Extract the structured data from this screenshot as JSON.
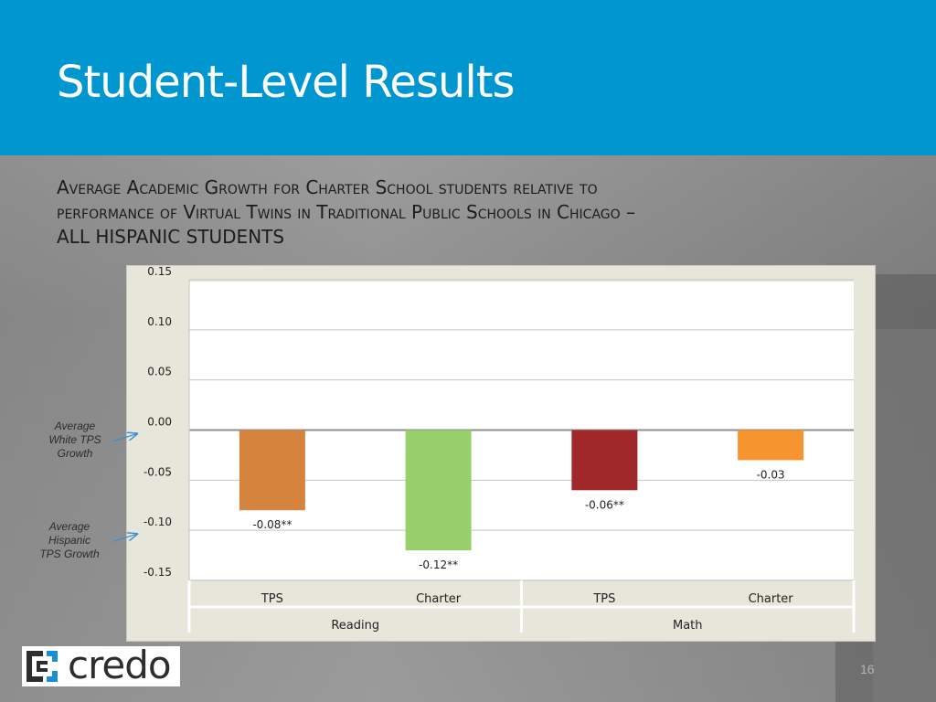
{
  "slide": {
    "title": "Student-Level Results",
    "subtitle_lines": [
      "Average Academic Growth for Charter School students relative to",
      "performance of Virtual Twins in Traditional Public Schools in Chicago –",
      "ALL HISPANIC STUDENTS"
    ],
    "page_number": "16",
    "logo_text": "credo",
    "annotations": {
      "white_tps_lines": [
        "Average",
        "White TPS",
        "Growth"
      ],
      "white_tps_value": 0.0,
      "hispanic_tps_lines": [
        "Average",
        "Hispanic",
        "TPS Growth"
      ],
      "hispanic_tps_value": -0.1
    }
  },
  "colors": {
    "header": "#0097d1",
    "arrow": "#3a8fd0",
    "bar_reading_tps": "#d4843c",
    "bar_reading_charter": "#97d06a",
    "bar_math_tps": "#a0282b",
    "bar_math_charter": "#f6952f"
  },
  "chart_data": {
    "type": "bar",
    "title": "",
    "xlabel": "",
    "ylabel": "",
    "ylim": [
      -0.15,
      0.15
    ],
    "yticks": [
      0.15,
      0.1,
      0.05,
      0.0,
      -0.05,
      -0.1,
      -0.15
    ],
    "ytick_labels": [
      "0.15",
      "0.10",
      "0.05",
      "0.00",
      "-0.05",
      "-0.10",
      "-0.15"
    ],
    "grid": true,
    "groups": [
      "Reading",
      "Math"
    ],
    "categories": [
      "TPS",
      "Charter",
      "TPS",
      "Charter"
    ],
    "category_groups": [
      "Reading",
      "Reading",
      "Math",
      "Math"
    ],
    "values": [
      -0.08,
      -0.12,
      -0.06,
      -0.03
    ],
    "data_labels": [
      "-0.08**",
      "-0.12**",
      "-0.06**",
      "-0.03"
    ],
    "bar_colors": [
      "#d4843c",
      "#97d06a",
      "#a0282b",
      "#f6952f"
    ]
  }
}
